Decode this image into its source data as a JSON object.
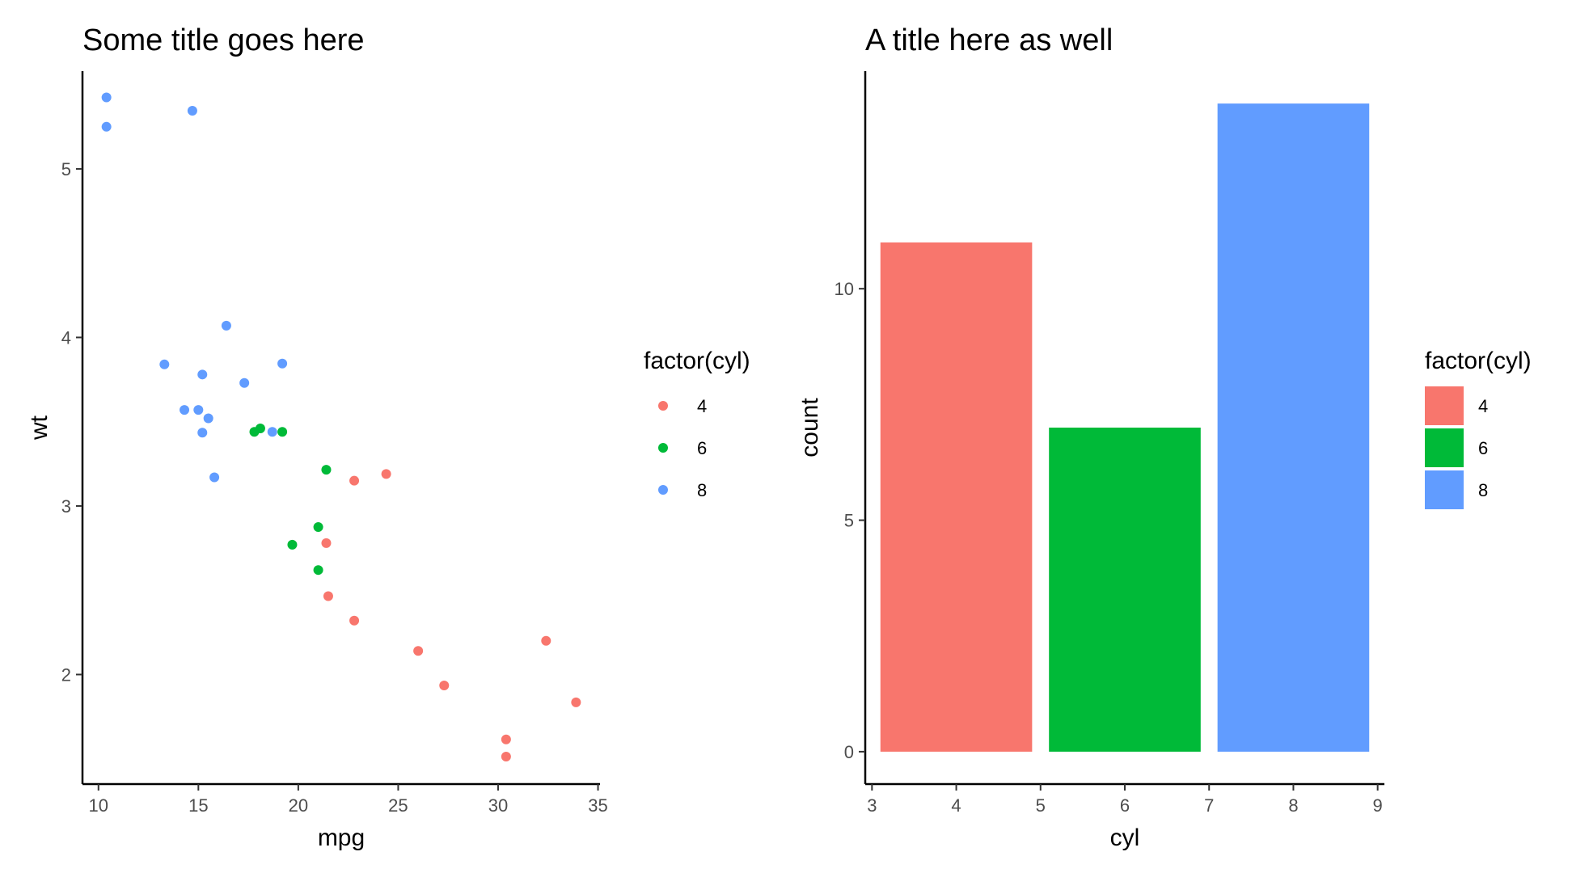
{
  "chart_data": [
    {
      "type": "scatter",
      "title": "Some title goes here",
      "xlabel": "mpg",
      "ylabel": "wt",
      "xlim": [
        9.2,
        35.1
      ],
      "ylim": [
        1.35,
        5.58
      ],
      "xticks": [
        10,
        15,
        20,
        25,
        30,
        35
      ],
      "yticks": [
        2,
        3,
        4,
        5
      ],
      "grid": false,
      "legend": {
        "title": "factor(cyl)",
        "placement": "right",
        "entries": [
          {
            "label": "4",
            "color": "#F8766D"
          },
          {
            "label": "6",
            "color": "#00BA38"
          },
          {
            "label": "8",
            "color": "#619CFF"
          }
        ]
      },
      "series": [
        {
          "group": "4",
          "color": "#F8766D",
          "points": [
            [
              22.8,
              2.32
            ],
            [
              24.4,
              3.19
            ],
            [
              22.8,
              3.15
            ],
            [
              32.4,
              2.2
            ],
            [
              30.4,
              1.615
            ],
            [
              33.9,
              1.835
            ],
            [
              21.5,
              2.465
            ],
            [
              27.3,
              1.935
            ],
            [
              26.0,
              2.14
            ],
            [
              30.4,
              1.513
            ],
            [
              21.4,
              2.78
            ]
          ]
        },
        {
          "group": "6",
          "color": "#00BA38",
          "points": [
            [
              21.0,
              2.62
            ],
            [
              21.0,
              2.875
            ],
            [
              21.4,
              3.215
            ],
            [
              18.1,
              3.46
            ],
            [
              19.2,
              3.44
            ],
            [
              17.8,
              3.44
            ],
            [
              19.7,
              2.77
            ]
          ]
        },
        {
          "group": "8",
          "color": "#619CFF",
          "points": [
            [
              18.7,
              3.44
            ],
            [
              14.3,
              3.57
            ],
            [
              16.4,
              4.07
            ],
            [
              17.3,
              3.73
            ],
            [
              15.2,
              3.78
            ],
            [
              10.4,
              5.25
            ],
            [
              10.4,
              5.424
            ],
            [
              14.7,
              5.345
            ],
            [
              15.5,
              3.52
            ],
            [
              15.2,
              3.435
            ],
            [
              13.3,
              3.84
            ],
            [
              19.2,
              3.845
            ],
            [
              15.8,
              3.17
            ],
            [
              15.0,
              3.57
            ]
          ]
        }
      ]
    },
    {
      "type": "bar",
      "title": "A title here as well",
      "xlabel": "cyl",
      "ylabel": "count",
      "xlim": [
        2.92,
        9.08
      ],
      "ylim": [
        -0.7,
        14.7
      ],
      "xticks": [
        3,
        4,
        5,
        6,
        7,
        8,
        9
      ],
      "yticks": [
        0,
        5,
        10
      ],
      "grid": false,
      "legend": {
        "title": "factor(cyl)",
        "placement": "right",
        "entries": [
          {
            "label": "4",
            "color": "#F8766D"
          },
          {
            "label": "6",
            "color": "#00BA38"
          },
          {
            "label": "8",
            "color": "#619CFF"
          }
        ]
      },
      "categories": [
        4,
        6,
        8
      ],
      "values": [
        11,
        7,
        14
      ],
      "colors": [
        "#F8766D",
        "#00BA38",
        "#619CFF"
      ]
    }
  ]
}
